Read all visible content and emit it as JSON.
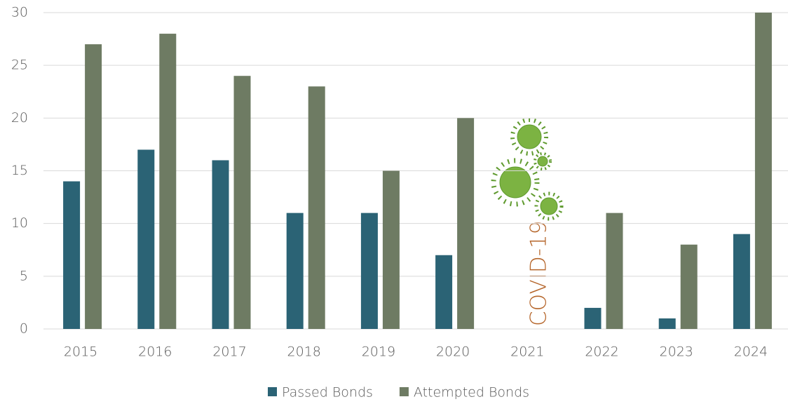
{
  "chart_data": {
    "type": "bar",
    "categories": [
      "2015",
      "2016",
      "2017",
      "2018",
      "2019",
      "2020",
      "2021",
      "2022",
      "2023",
      "2024"
    ],
    "series": [
      {
        "name": "Passed Bonds",
        "color": "#2b6375",
        "values": [
          14,
          17,
          16,
          11,
          11,
          7,
          null,
          2,
          1,
          9
        ]
      },
      {
        "name": "Attempted Bonds",
        "color": "#6e7b63",
        "values": [
          27,
          28,
          24,
          23,
          15,
          20,
          null,
          11,
          8,
          30
        ]
      }
    ],
    "ylim": [
      0,
      30
    ],
    "yticks": [
      0,
      5,
      10,
      15,
      20,
      25,
      30
    ],
    "grid": true,
    "annotation": "COVID-19",
    "legend": "bottom"
  }
}
